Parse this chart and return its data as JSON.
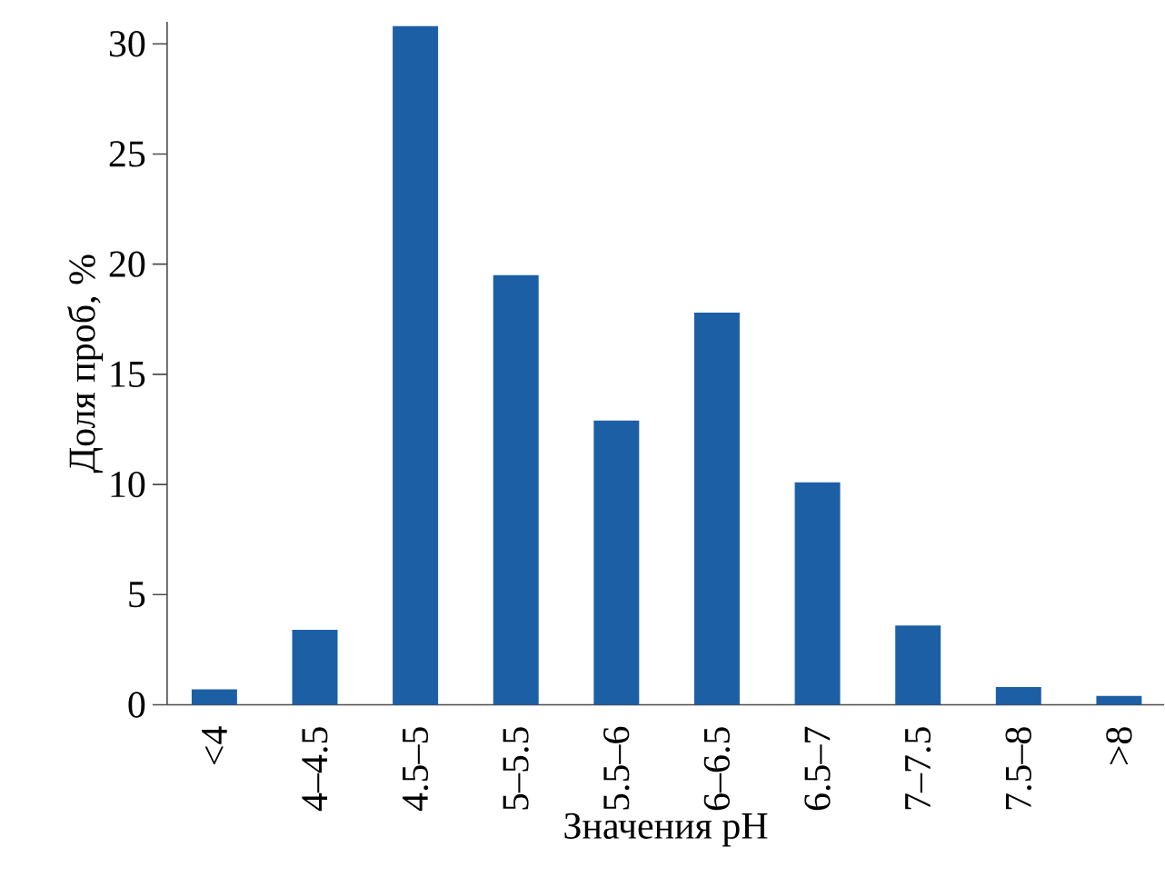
{
  "chart_data": {
    "type": "bar",
    "xlabel": "Значения pH",
    "ylabel": "Доля проб, %",
    "categories": [
      "<4",
      "4–4.5",
      "4.5–5",
      "5–5.5",
      "5.5–6",
      "6–6.5",
      "6.5–7",
      "7–7.5",
      "7.5–8",
      ">8"
    ],
    "values": [
      0.7,
      3.4,
      30.8,
      19.5,
      12.9,
      17.8,
      10.1,
      3.6,
      0.8,
      0.4
    ],
    "color": "#1c5fa5",
    "ylim": [
      0,
      31
    ],
    "yticks": [
      0,
      5,
      10,
      15,
      20,
      25,
      30
    ],
    "grid": false
  }
}
